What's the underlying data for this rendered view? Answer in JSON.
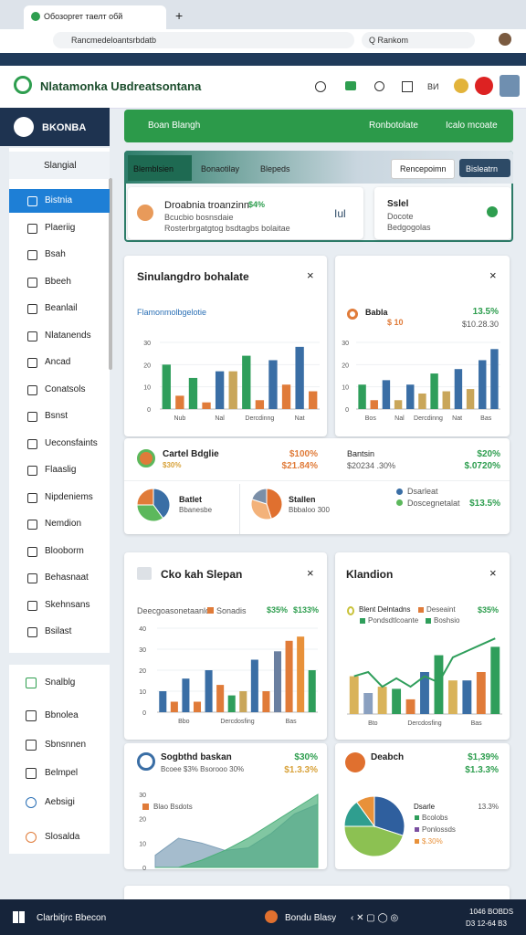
{
  "browser": {
    "tab": "Обозоргет таелт обй",
    "url": "Rancmedeloantsrbdatb",
    "search": "Q Rankom"
  },
  "header": {
    "title": "Nlatamonka Uвdreatsontana",
    "badge": "BИ"
  },
  "sidebar": {
    "header": "BKONBA",
    "group": "Slangial",
    "items": [
      "Bistnia",
      "Plaeriig",
      "Bsah",
      "Bbeeh",
      "Beanlail",
      "Nlatanends",
      "Ancad",
      "Conatsols",
      "Bsnst",
      "Ueconsfaints",
      "Flaaslig",
      "Nipdeniems",
      "Nemdion",
      "Blooborm",
      "Behasnaat",
      "Skehnsans",
      "Bsilast"
    ],
    "footer": [
      "Snalblg",
      "Bbnolea",
      "Sbnsnnen",
      "Belmpel",
      "Aebsigi",
      "Slosalda"
    ]
  },
  "toolbar": {
    "title": "Boan Blangh",
    "actions": [
      "Ronbotolate",
      "Icalo mcoate"
    ]
  },
  "tabs": {
    "items": [
      "Blemblsien",
      "Bonaotilay",
      "Blepeds"
    ],
    "buttons": [
      "Rencepoimn",
      "Bisleatrn"
    ]
  },
  "summary": {
    "title": "Droabnia troanzinn",
    "highlight": "$4%",
    "lines": [
      "Bcucbio bosnsdaie",
      "Rosterbrgatgtog bsdtagbs bolaitae"
    ],
    "icon": "Iul",
    "side": {
      "title": "Sslel",
      "lines": [
        "Docote",
        "Bedgogolas"
      ]
    }
  },
  "cards": [
    {
      "title": "Sinulangdro bohalate",
      "subtitle": "Flamonmolbgelotie"
    },
    {
      "title": "Babla",
      "amount": "$ 10",
      "change": "13.5%",
      "sub": "$10.28.30"
    },
    {
      "title": "Cartel Bdglie",
      "sub": "$30%",
      "value": "$100%",
      "change": "$21.84%"
    },
    {
      "title": "Bantsin",
      "sub": "$20234 .30%",
      "value": "$20%",
      "change": "$.0720%"
    },
    {
      "title": "Batlet",
      "sub": "Bbanesbe"
    },
    {
      "title": "Stallen",
      "sub": "Bbbaloo 300"
    },
    {
      "legend": [
        "Dsarleat",
        "Doscegnetalat"
      ],
      "value": "$13.5%"
    },
    {
      "title": "Cko kah Slepan",
      "legend": [
        "Deecgoasonetaanlo",
        "Sonadis"
      ],
      "values": [
        "$35%",
        "$133%"
      ]
    },
    {
      "title": "Klandion",
      "legend": [
        "Blent Delntadns",
        "Deseaint",
        "Pondsdtlcoante",
        "Boshsio"
      ],
      "value": "$35%"
    },
    {
      "title": "Sogbthd baskan",
      "sub": "Bcoee $3%  Bsorooo 30%",
      "value": "$30%",
      "change": "$1.3.3%",
      "legend": "Blao Bsdots"
    },
    {
      "title": "Deabch",
      "value": "$1,39%",
      "change": "$1.3.3%",
      "legend_title": "Dsarle",
      "legend_value": "13.3%",
      "legend": [
        "Bcolobs",
        "Ponlossds",
        "$.30%"
      ]
    }
  ],
  "charts": [
    {
      "type": "bar",
      "ylim": [
        0,
        30
      ],
      "yticks": [
        0,
        10,
        20,
        30
      ],
      "grid": true,
      "values": [
        20,
        6,
        14,
        3,
        17,
        17,
        24,
        4,
        22,
        11,
        28,
        8
      ],
      "colors": [
        "#2f9e5b",
        "#e07b39",
        "#2f9e5b",
        "#e07b39",
        "#3a6ea5",
        "#c9a65a",
        "#2f9e5b",
        "#e07b39",
        "#3a6ea5",
        "#e07b39",
        "#3a6ea5",
        "#e07b39"
      ],
      "x_labels": [
        "Nub",
        "Nal",
        "Dercdinng",
        "Nat"
      ]
    },
    {
      "type": "bar",
      "ylim": [
        0,
        30
      ],
      "yticks": [
        0,
        10,
        20,
        30
      ],
      "grid": true,
      "values": [
        11,
        4,
        13,
        4,
        11,
        7,
        16,
        8,
        18,
        9,
        22,
        27
      ],
      "colors": [
        "#2f9e5b",
        "#e07b39",
        "#3a6ea5",
        "#c9a65a",
        "#3a6ea5",
        "#c9a65a",
        "#2f9e5b",
        "#c9a65a",
        "#3a6ea5",
        "#c9a65a",
        "#3a6ea5",
        "#3a6ea5"
      ],
      "x_labels": [
        "Bos",
        "Nal",
        "Dercdinng",
        "Nat",
        "Bas"
      ]
    },
    {
      "type": "pie",
      "values": [
        40,
        35,
        25
      ],
      "colors": [
        "#3a6ea5",
        "#5cb85c",
        "#e07b39"
      ]
    },
    {
      "type": "pie",
      "values": [
        45,
        35,
        20
      ],
      "colors": [
        "#e0702f",
        "#f3b27a",
        "#7b8fa8"
      ]
    },
    {
      "type": "bar",
      "ylim": [
        0,
        40
      ],
      "yticks": [
        0,
        10,
        20,
        30,
        40
      ],
      "grid": true,
      "values": [
        10,
        5,
        16,
        5,
        20,
        13,
        8,
        10,
        25,
        10,
        29,
        34,
        36,
        20
      ],
      "colors": [
        "#3a6ea5",
        "#e07b39",
        "#3a6ea5",
        "#e07b39",
        "#3a6ea5",
        "#e07b39",
        "#2f9e5b",
        "#c9a65a",
        "#3a6ea5",
        "#e07b39",
        "#6a7fa0",
        "#e07b39",
        "#e8913a",
        "#2f9e5b"
      ],
      "x_labels": [
        "Bbo",
        "Dercdosfing",
        "Bas"
      ]
    },
    {
      "type": "bar",
      "ylim": [
        0,
        40
      ],
      "values": [
        18,
        10,
        13,
        12,
        7,
        20,
        28,
        16,
        16,
        20,
        32
      ],
      "colors": [
        "#d9b35a",
        "#8aa0c0",
        "#d9b35a",
        "#2f9e5b",
        "#e07b39",
        "#3a6ea5",
        "#2f9e5b",
        "#d9b35a",
        "#3a6ea5",
        "#e07b39",
        "#2f9e5b"
      ],
      "line": {
        "color": "#2f9e5b",
        "values": [
          18,
          20,
          13,
          17,
          13,
          18,
          15,
          27,
          30,
          33,
          36
        ]
      },
      "x_labels": [
        "Bto",
        "Dercdosfing",
        "Bas"
      ]
    },
    {
      "type": "area",
      "ylim": [
        0,
        30
      ],
      "yticks": [
        0,
        10,
        20,
        30
      ],
      "series": [
        {
          "color": "#7fa0b8",
          "values": [
            5,
            12,
            10,
            7,
            8,
            14,
            22,
            26
          ]
        },
        {
          "color": "#4caf7a",
          "values": [
            0,
            0,
            3,
            7,
            12,
            18,
            24,
            30
          ]
        }
      ]
    },
    {
      "type": "pie",
      "values": [
        30,
        45,
        15,
        10
      ],
      "colors": [
        "#2f5f9e",
        "#8cc152",
        "#2f9e8f",
        "#e8913a"
      ]
    }
  ],
  "taskbar": {
    "search": "Clarbitjrc Bbecon",
    "app": "Bondu Blasy",
    "time": "1046 BOBDS",
    "date": "D3 12-64 B3"
  }
}
